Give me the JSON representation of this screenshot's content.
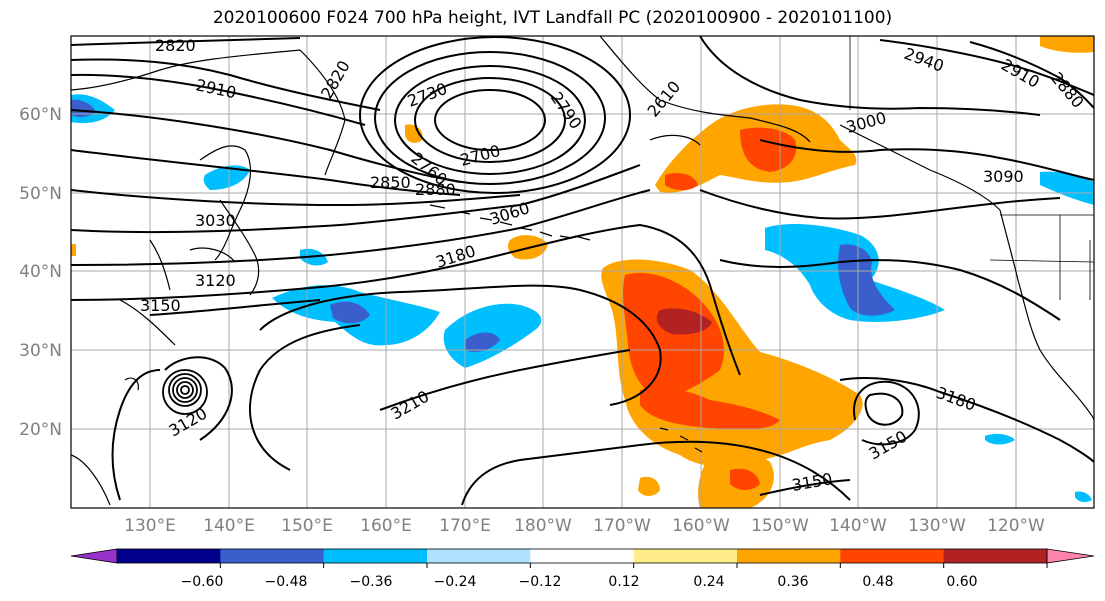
{
  "title": "2020100600 F024 700 hPa height, IVT Landfall PC (2020100900 - 2020101100)",
  "lat_labels": [
    "60°N",
    "50°N",
    "40°N",
    "30°N",
    "20°N"
  ],
  "lon_labels": [
    "130°E",
    "140°E",
    "150°E",
    "160°E",
    "170°E",
    "180°W",
    "170°W",
    "160°W",
    "150°W",
    "140°W",
    "130°W",
    "120°W"
  ],
  "contour_labels": [
    "2820",
    "2910",
    "2820",
    "2730",
    "2790",
    "2610",
    "2940",
    "2910",
    "2880",
    "3000",
    "2760",
    "2700",
    "2850",
    "2880",
    "3060",
    "3090",
    "3030",
    "3180",
    "3120",
    "3150",
    "3210",
    "3180",
    "3120",
    "3150",
    "3150"
  ],
  "colorbar": {
    "colors": [
      "#9932cc",
      "#00008b",
      "#3a5fcd",
      "#00bfff",
      "#b0e2ff",
      "#ffffff",
      "#ffec8b",
      "#ffa500",
      "#ff4500",
      "#b22222",
      "#ff82ab"
    ],
    "tick_labels": [
      "−0.60",
      "−0.48",
      "−0.36",
      "−0.24",
      "−0.12",
      "0.12",
      "0.24",
      "0.36",
      "0.48",
      "0.60"
    ]
  }
}
